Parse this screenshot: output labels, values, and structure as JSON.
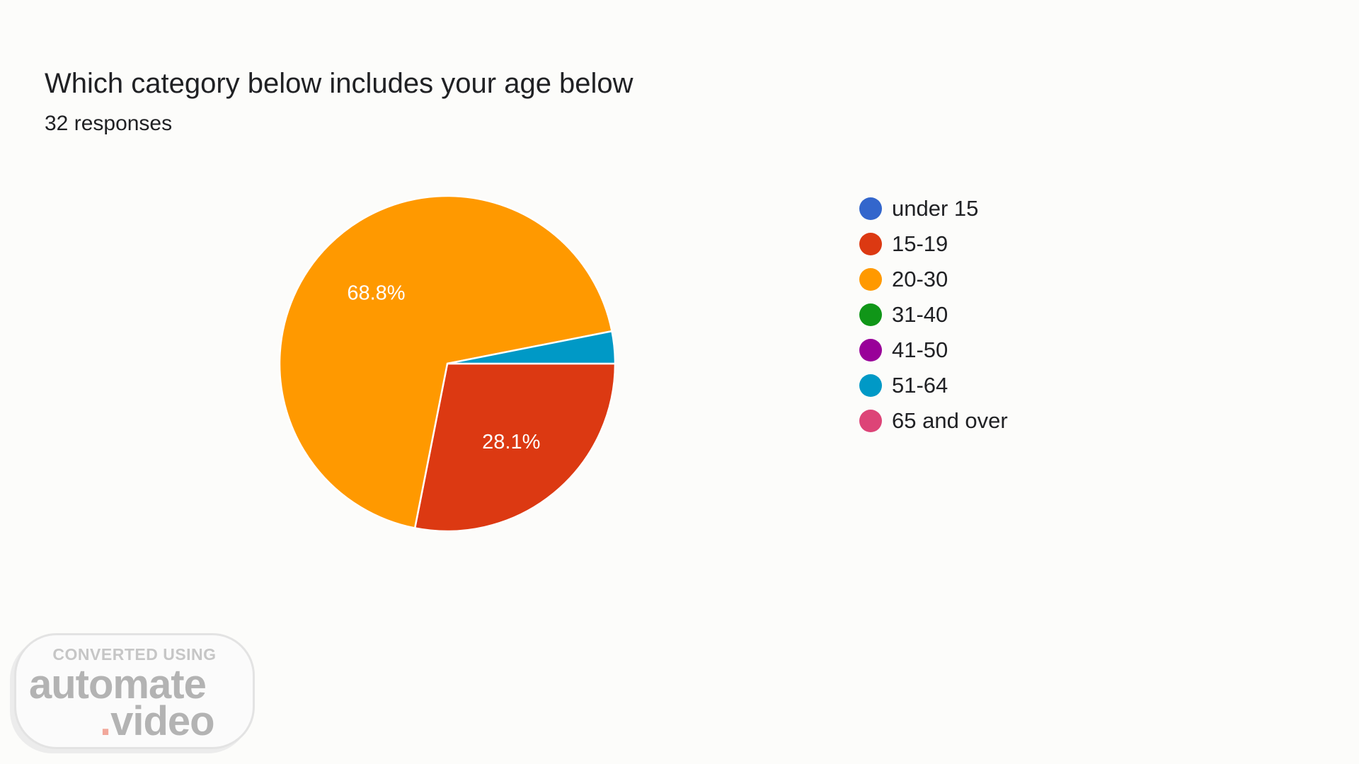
{
  "chart_data": {
    "type": "pie",
    "title": "Which category below includes your age below",
    "subtitle": "32 responses",
    "legend_position": "right",
    "slices": [
      {
        "label": "under 15",
        "value": 0,
        "color": "#3366cc",
        "value_label": ""
      },
      {
        "label": "15-19",
        "value": 28.1,
        "color": "#dc3912",
        "value_label": "28.1%"
      },
      {
        "label": "20-30",
        "value": 68.8,
        "color": "#ff9900",
        "value_label": "68.8%"
      },
      {
        "label": "31-40",
        "value": 0,
        "color": "#109618",
        "value_label": ""
      },
      {
        "label": "41-50",
        "value": 0,
        "color": "#990099",
        "value_label": ""
      },
      {
        "label": "51-64",
        "value": 3.1,
        "color": "#0099c6",
        "value_label": ""
      },
      {
        "label": "65 and over",
        "value": 0,
        "color": "#dd4477",
        "value_label": ""
      }
    ]
  },
  "watermark": {
    "caption": "CONVERTED USING",
    "word1": "automate",
    "dot": ".",
    "word2": "video"
  }
}
